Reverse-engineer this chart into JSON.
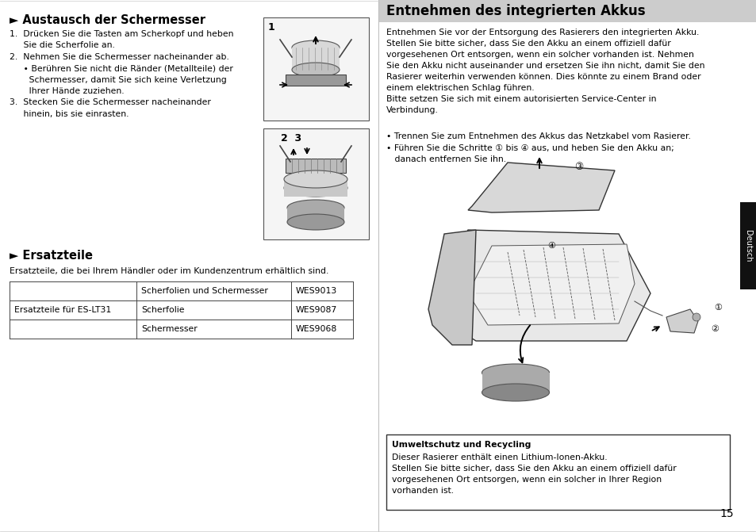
{
  "bg_color": "#ffffff",
  "page_number": "15",
  "left_section": {
    "title": "► Austausch der Schermesser",
    "steps_text": "1.  Drücken Sie die Tasten am Scherkopf und heben\n     Sie die Scherfolie an.\n2.  Nehmen Sie die Schermesser nacheinander ab.\n     • Berühren Sie nicht die Ränder (Metallteile) der\n       Schermesser, damit Sie sich keine Verletzung\n       Ihrer Hände zuziehen.\n3.  Stecken Sie die Schermesser nacheinander\n     hinein, bis sie einrasten.",
    "ersatzteile_title": "► Ersatzteile",
    "ersatzteile_intro": "Ersatzteile, die bei Ihrem Händler oder im Kundenzentrum erhältlich sind.",
    "table_col1": "Ersatzteile für ES-LT31",
    "table_rows": [
      [
        "Scherfolien und Schermesser",
        "WES9013"
      ],
      [
        "Scherfolie",
        "WES9087"
      ],
      [
        "Schermesser",
        "WES9068"
      ]
    ]
  },
  "right_section": {
    "header_title": "Entnehmen des integrierten Akkus",
    "header_bg": "#cccccc",
    "body_text": "Entnehmen Sie vor der Entsorgung des Rasierers den integrierten Akku.\nStellen Sie bitte sicher, dass Sie den Akku an einem offiziell dafür\nvorgesehenen Ort entsorgen, wenn ein solcher vorhanden ist. Nehmen\nSie den Akku nicht auseinander und ersetzen Sie ihn nicht, damit Sie den\nRasierer weiterhin verwenden können. Dies könnte zu einem Brand oder\neinem elektrischen Schlag führen.\nBitte setzen Sie sich mit einem autorisierten Service-Center in\nVerbindung.",
    "bullet1": "• Trennen Sie zum Entnehmen des Akkus das Netzkabel vom Rasierer.",
    "bullet2": "• Führen Sie die Schritte ① bis ④ aus, und heben Sie den Akku an;\n   danach entfernen Sie ihn.",
    "sidebar_label": "Deutsch",
    "sidebar_bg": "#111111",
    "recycling_title": "Umweltschutz und Recycling",
    "recycling_text": "Dieser Rasierer enthält einen Lithium-Ionen-Akku.\nStellen Sie bitte sicher, dass Sie den Akku an einem offiziell dafür\nvorgesehenen Ort entsorgen, wenn ein solcher in Ihrer Region\nvorhanden ist."
  }
}
